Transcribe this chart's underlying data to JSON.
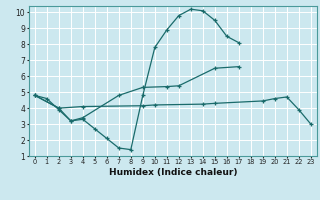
{
  "xlabel": "Humidex (Indice chaleur)",
  "bg_color": "#cce8ef",
  "grid_color": "#ffffff",
  "line_color": "#1a6b6b",
  "xlim": [
    -0.5,
    23.5
  ],
  "ylim": [
    1,
    10.4
  ],
  "line1_x": [
    0,
    1,
    2,
    3,
    4,
    5,
    6,
    7,
    8,
    9,
    10,
    11,
    12,
    13,
    14,
    15,
    16,
    17
  ],
  "line1_y": [
    4.8,
    4.6,
    3.9,
    3.2,
    3.3,
    2.7,
    2.1,
    1.5,
    1.4,
    4.8,
    7.8,
    8.9,
    9.8,
    10.2,
    10.1,
    9.5,
    8.5,
    8.1
  ],
  "line2_x": [
    0,
    2,
    3,
    4,
    7,
    9,
    11,
    12,
    15,
    17
  ],
  "line2_y": [
    4.8,
    4.0,
    3.2,
    3.4,
    4.8,
    5.3,
    5.35,
    5.4,
    6.5,
    6.6
  ],
  "line3_x": [
    0,
    2,
    4,
    9,
    10,
    14,
    15,
    19,
    20,
    21,
    22,
    23
  ],
  "line3_y": [
    4.8,
    4.0,
    4.1,
    4.15,
    4.2,
    4.25,
    4.3,
    4.45,
    4.6,
    4.7,
    3.9,
    3.0
  ]
}
